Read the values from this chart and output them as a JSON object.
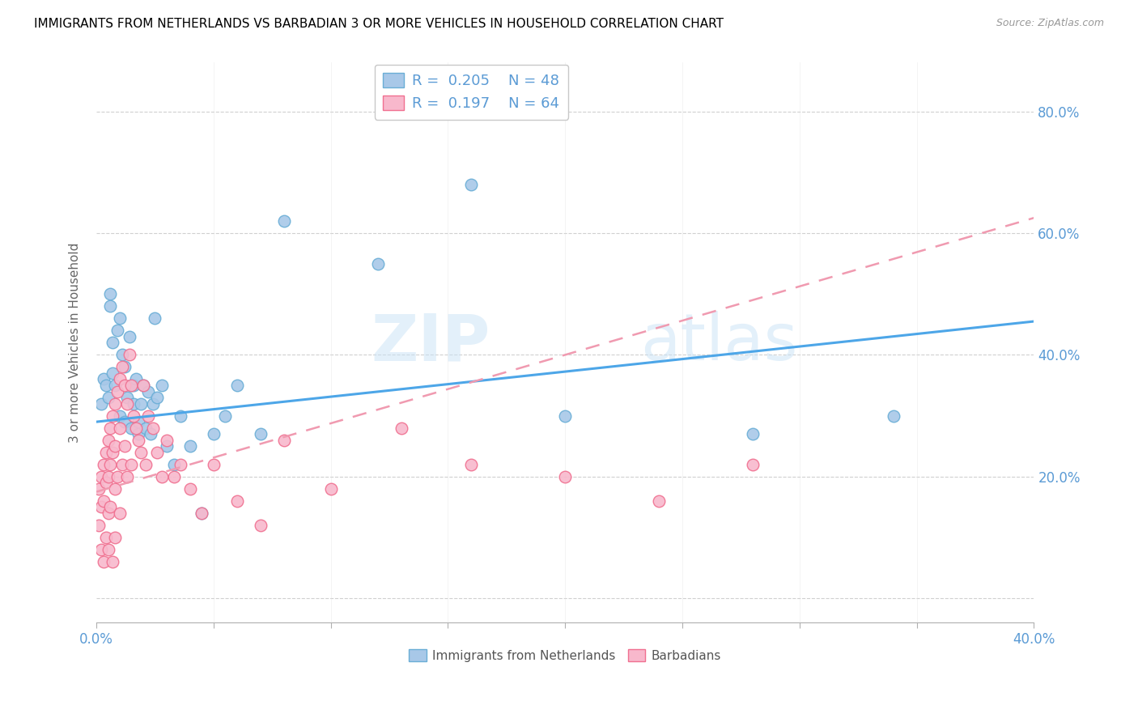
{
  "title": "IMMIGRANTS FROM NETHERLANDS VS BARBADIAN 3 OR MORE VEHICLES IN HOUSEHOLD CORRELATION CHART",
  "source": "Source: ZipAtlas.com",
  "ylabel": "3 or more Vehicles in Household",
  "xmin": 0.0,
  "xmax": 0.4,
  "ymin": -0.04,
  "ymax": 0.88,
  "legend_R1": "R =  0.205",
  "legend_N1": "N = 48",
  "legend_R2": "R =  0.197",
  "legend_N2": "N = 64",
  "color_blue": "#a8c8e8",
  "color_blue_edge": "#6aaed6",
  "color_pink": "#f8b8cc",
  "color_pink_edge": "#f07090",
  "color_trend_blue": "#4da6e8",
  "color_trend_pink": "#f09ab0",
  "watermark_zip": "ZIP",
  "watermark_atlas": "atlas",
  "ytick_vals": [
    0.0,
    0.2,
    0.4,
    0.6,
    0.8
  ],
  "ytick_labels": [
    "",
    "20.0%",
    "40.0%",
    "60.0%",
    "80.0%"
  ],
  "blue_scatter_x": [
    0.002,
    0.003,
    0.004,
    0.005,
    0.006,
    0.006,
    0.007,
    0.007,
    0.008,
    0.009,
    0.01,
    0.01,
    0.011,
    0.012,
    0.012,
    0.013,
    0.014,
    0.015,
    0.015,
    0.016,
    0.016,
    0.017,
    0.018,
    0.018,
    0.019,
    0.02,
    0.021,
    0.022,
    0.023,
    0.024,
    0.025,
    0.026,
    0.028,
    0.03,
    0.033,
    0.036,
    0.04,
    0.045,
    0.05,
    0.055,
    0.06,
    0.07,
    0.08,
    0.12,
    0.16,
    0.2,
    0.28,
    0.34
  ],
  "blue_scatter_y": [
    0.32,
    0.36,
    0.35,
    0.33,
    0.5,
    0.48,
    0.37,
    0.42,
    0.35,
    0.44,
    0.3,
    0.46,
    0.4,
    0.38,
    0.29,
    0.33,
    0.43,
    0.35,
    0.28,
    0.35,
    0.32,
    0.36,
    0.27,
    0.29,
    0.32,
    0.35,
    0.28,
    0.34,
    0.27,
    0.32,
    0.46,
    0.33,
    0.35,
    0.25,
    0.22,
    0.3,
    0.25,
    0.14,
    0.27,
    0.3,
    0.35,
    0.27,
    0.62,
    0.55,
    0.68,
    0.3,
    0.27,
    0.3
  ],
  "pink_scatter_x": [
    0.001,
    0.001,
    0.002,
    0.002,
    0.002,
    0.003,
    0.003,
    0.003,
    0.004,
    0.004,
    0.004,
    0.005,
    0.005,
    0.005,
    0.005,
    0.006,
    0.006,
    0.006,
    0.007,
    0.007,
    0.007,
    0.008,
    0.008,
    0.008,
    0.008,
    0.009,
    0.009,
    0.01,
    0.01,
    0.01,
    0.011,
    0.011,
    0.012,
    0.012,
    0.013,
    0.013,
    0.014,
    0.015,
    0.015,
    0.016,
    0.017,
    0.018,
    0.019,
    0.02,
    0.021,
    0.022,
    0.024,
    0.026,
    0.028,
    0.03,
    0.033,
    0.036,
    0.04,
    0.045,
    0.05,
    0.06,
    0.07,
    0.08,
    0.1,
    0.13,
    0.16,
    0.2,
    0.24,
    0.28
  ],
  "pink_scatter_y": [
    0.18,
    0.12,
    0.2,
    0.15,
    0.08,
    0.22,
    0.16,
    0.06,
    0.24,
    0.19,
    0.1,
    0.26,
    0.2,
    0.14,
    0.08,
    0.28,
    0.22,
    0.15,
    0.3,
    0.24,
    0.06,
    0.32,
    0.25,
    0.18,
    0.1,
    0.34,
    0.2,
    0.36,
    0.28,
    0.14,
    0.38,
    0.22,
    0.35,
    0.25,
    0.32,
    0.2,
    0.4,
    0.35,
    0.22,
    0.3,
    0.28,
    0.26,
    0.24,
    0.35,
    0.22,
    0.3,
    0.28,
    0.24,
    0.2,
    0.26,
    0.2,
    0.22,
    0.18,
    0.14,
    0.22,
    0.16,
    0.12,
    0.26,
    0.18,
    0.28,
    0.22,
    0.2,
    0.16,
    0.22
  ]
}
